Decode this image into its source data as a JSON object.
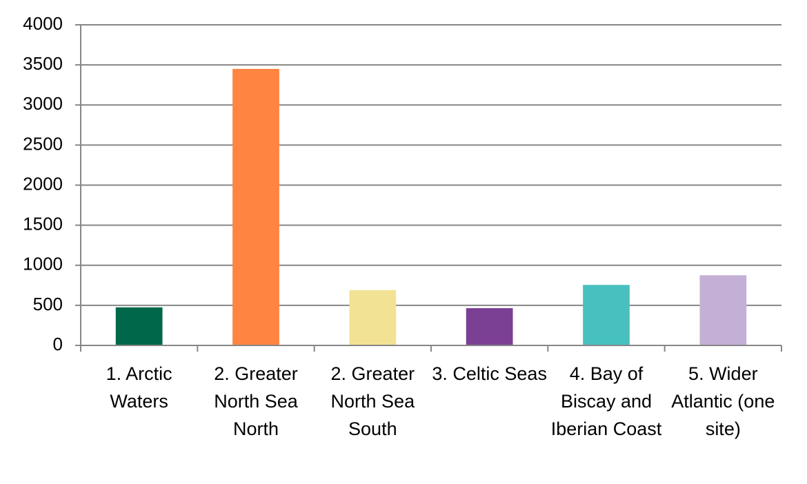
{
  "chart_data": {
    "type": "bar",
    "categories": [
      "1. Arctic Waters",
      "2. Greater North Sea North",
      "2. Greater North Sea South",
      "3. Celtic Seas",
      "4. Bay of Biscay and Iberian Coast",
      "5. Wider Atlantic (one site)"
    ],
    "values": [
      475,
      3450,
      690,
      465,
      755,
      875
    ],
    "colors": [
      "#00674b",
      "#ff8540",
      "#f2e294",
      "#7b3f94",
      "#48c0bf",
      "#c4b0d6"
    ],
    "ylim": [
      0,
      4000
    ],
    "yticks": [
      0,
      500,
      1000,
      1500,
      2000,
      2500,
      3000,
      3500,
      4000
    ],
    "grid": true
  }
}
